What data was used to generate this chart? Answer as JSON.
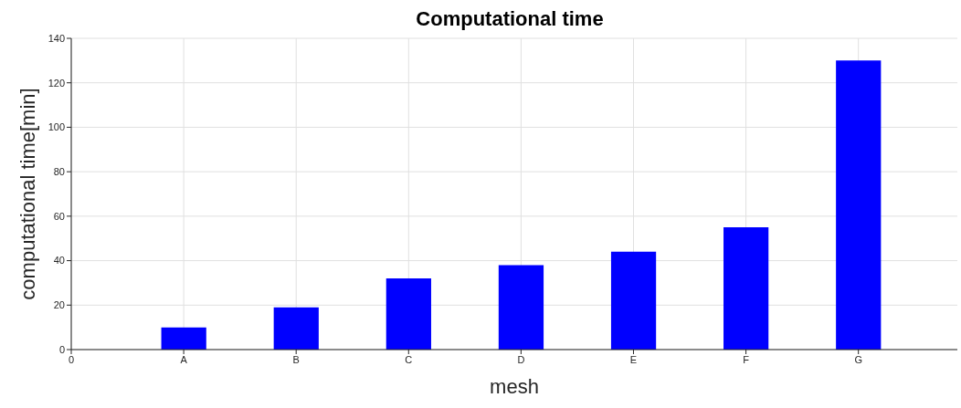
{
  "chart_data": {
    "type": "bar",
    "title": "Computational time",
    "xlabel": "mesh",
    "ylabel": "computational time[min]",
    "categories": [
      "0",
      "A",
      "B",
      "C",
      "D",
      "E",
      "F",
      "G"
    ],
    "values": [
      null,
      10,
      19,
      32,
      38,
      44,
      55,
      130
    ],
    "color": "#0000ff",
    "ylim": [
      0,
      140
    ],
    "yticks": [
      0,
      20,
      40,
      60,
      80,
      100,
      120,
      140
    ],
    "grid": true
  }
}
